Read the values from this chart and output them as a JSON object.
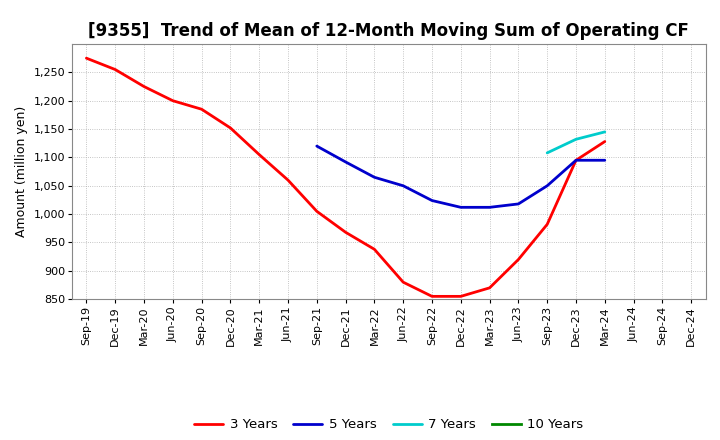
{
  "title": "[9355]  Trend of Mean of 12-Month Moving Sum of Operating CF",
  "ylabel": "Amount (million yen)",
  "background_color": "#ffffff",
  "plot_bg_color": "#ffffff",
  "grid_color": "#aaaaaa",
  "ylim": [
    850,
    1300
  ],
  "yticks": [
    850,
    900,
    950,
    1000,
    1050,
    1100,
    1150,
    1200,
    1250
  ],
  "series": {
    "3yr": {
      "color": "#ff0000",
      "label": "3 Years",
      "x": [
        "Sep-19",
        "Dec-19",
        "Mar-20",
        "Jun-20",
        "Sep-20",
        "Dec-20",
        "Mar-21",
        "Jun-21",
        "Sep-21",
        "Dec-21",
        "Mar-22",
        "Jun-22",
        "Sep-22",
        "Dec-22",
        "Mar-23",
        "Jun-23",
        "Sep-23",
        "Dec-23",
        "Mar-24"
      ],
      "y": [
        1275,
        1255,
        1225,
        1200,
        1185,
        1152,
        1105,
        1060,
        1005,
        968,
        938,
        880,
        855,
        855,
        870,
        920,
        982,
        1095,
        1128
      ]
    },
    "5yr": {
      "color": "#0000cc",
      "label": "5 Years",
      "x": [
        "Sep-21",
        "Dec-21",
        "Mar-22",
        "Jun-22",
        "Sep-22",
        "Dec-22",
        "Mar-23",
        "Jun-23",
        "Sep-23",
        "Dec-23",
        "Mar-24"
      ],
      "y": [
        1120,
        1092,
        1065,
        1050,
        1024,
        1012,
        1012,
        1018,
        1050,
        1095,
        1095
      ]
    },
    "7yr": {
      "color": "#00cccc",
      "label": "7 Years",
      "x": [
        "Sep-23",
        "Dec-23",
        "Mar-24"
      ],
      "y": [
        1108,
        1132,
        1145
      ]
    },
    "10yr": {
      "color": "#008800",
      "label": "10 Years",
      "x": [],
      "y": []
    }
  },
  "xtick_labels": [
    "Sep-19",
    "Dec-19",
    "Mar-20",
    "Jun-20",
    "Sep-20",
    "Dec-20",
    "Mar-21",
    "Jun-21",
    "Sep-21",
    "Dec-21",
    "Mar-22",
    "Jun-22",
    "Sep-22",
    "Dec-22",
    "Mar-23",
    "Jun-23",
    "Sep-23",
    "Dec-23",
    "Mar-24",
    "Jun-24",
    "Sep-24",
    "Dec-24"
  ],
  "title_fontsize": 12,
  "legend_fontsize": 9.5,
  "tick_fontsize": 8,
  "linewidth": 2.0
}
